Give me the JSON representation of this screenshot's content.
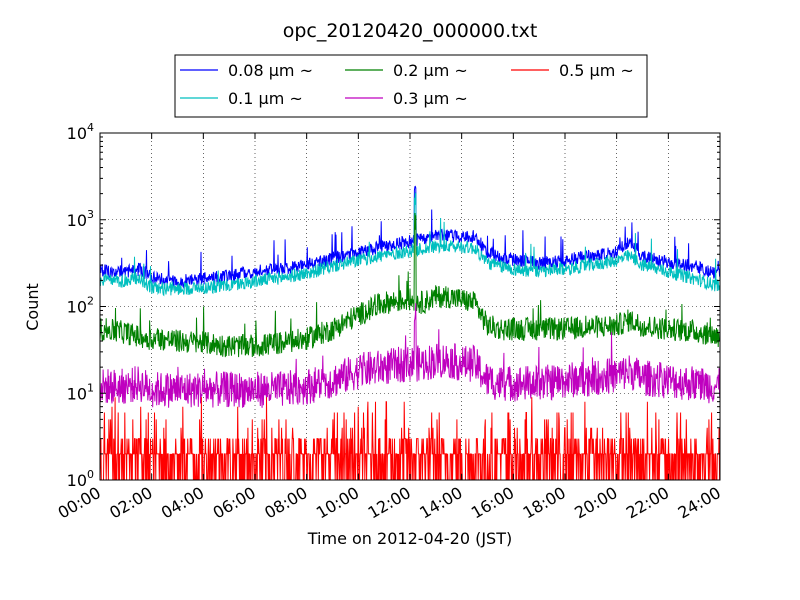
{
  "chart_data": {
    "type": "line",
    "title": "opc_20120420_000000.txt",
    "xlabel": "Time on 2012-04-20 (JST)",
    "ylabel": "Count",
    "y_scale": "log",
    "ylim": [
      1,
      10000
    ],
    "y_ticks": [
      {
        "value": 1,
        "base": "10",
        "exp": "0"
      },
      {
        "value": 10,
        "base": "10",
        "exp": "1"
      },
      {
        "value": 100,
        "base": "10",
        "exp": "2"
      },
      {
        "value": 1000,
        "base": "10",
        "exp": "3"
      },
      {
        "value": 10000,
        "base": "10",
        "exp": "4"
      }
    ],
    "xlim": [
      "00:00",
      "24:00"
    ],
    "x_ticks": [
      "00:00",
      "02:00",
      "04:00",
      "06:00",
      "08:00",
      "10:00",
      "12:00",
      "14:00",
      "16:00",
      "18:00",
      "20:00",
      "22:00",
      "24:00"
    ],
    "grid": true,
    "legend_position": "top-center",
    "legend_columns": 3,
    "legend": [
      {
        "label": "0.08 μm ~",
        "color": "#0000ff"
      },
      {
        "label": "0.2 μm ~",
        "color": "#008000"
      },
      {
        "label": "0.5 μm ~",
        "color": "#ff0000"
      },
      {
        "label": "0.1 μm ~",
        "color": "#00bfbf"
      },
      {
        "label": "0.3 μm ~",
        "color": "#bf00bf"
      }
    ],
    "x_hours": [
      0,
      1,
      1.5,
      2,
      2.5,
      3,
      4,
      5,
      6,
      7,
      8,
      9,
      10,
      11,
      12,
      12.2,
      12.5,
      13,
      13.5,
      14,
      14.5,
      15,
      15.5,
      16,
      17,
      18,
      19,
      20,
      20.5,
      21,
      22,
      23,
      24
    ],
    "series": [
      {
        "name": "0.08 μm ~",
        "color": "#0000ff",
        "values": [
          260,
          250,
          270,
          215,
          205,
          195,
          205,
          225,
          255,
          275,
          300,
          360,
          420,
          490,
          560,
          2500,
          600,
          650,
          650,
          650,
          650,
          420,
          370,
          350,
          320,
          340,
          380,
          420,
          560,
          380,
          320,
          290,
          230
        ]
      },
      {
        "name": "0.1 μm ~",
        "color": "#00bfbf",
        "values": [
          200,
          195,
          215,
          165,
          160,
          160,
          165,
          175,
          195,
          215,
          240,
          290,
          340,
          390,
          440,
          1700,
          460,
          490,
          490,
          490,
          470,
          320,
          290,
          270,
          250,
          270,
          300,
          340,
          380,
          300,
          250,
          210,
          170
        ]
      },
      {
        "name": "0.2 μm ~",
        "color": "#008000",
        "values": [
          55,
          50,
          45,
          42,
          42,
          40,
          38,
          35,
          35,
          38,
          42,
          55,
          80,
          110,
          120,
          1000,
          110,
          130,
          130,
          120,
          110,
          60,
          55,
          55,
          55,
          55,
          58,
          60,
          70,
          60,
          55,
          52,
          45
        ]
      },
      {
        "name": "0.3 μm ~",
        "color": "#bf00bf",
        "values": [
          12,
          12,
          13,
          11,
          11,
          11,
          11,
          11,
          11,
          11,
          12,
          14,
          18,
          20,
          22,
          80,
          22,
          24,
          24,
          22,
          22,
          14,
          13,
          13,
          13,
          14,
          15,
          16,
          18,
          15,
          14,
          13,
          12
        ]
      },
      {
        "name": "0.5 μm ~",
        "color": "#ff0000",
        "values": [
          2,
          2,
          2,
          2,
          2,
          2,
          2,
          2,
          2,
          2,
          2,
          2,
          2,
          2,
          2,
          2,
          2,
          2,
          2,
          2,
          2,
          2,
          2,
          2,
          2,
          2,
          2,
          2,
          2,
          2,
          2,
          2,
          2
        ]
      }
    ]
  }
}
